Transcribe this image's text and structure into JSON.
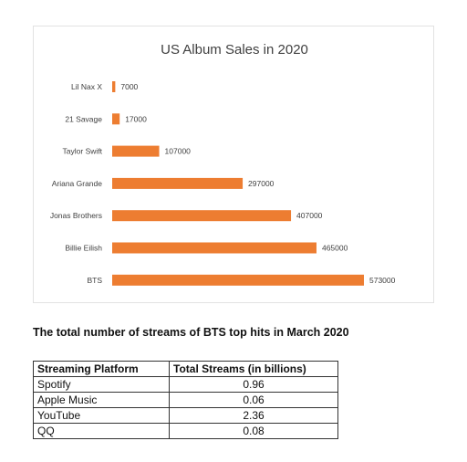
{
  "chart_data": {
    "type": "bar",
    "orientation": "horizontal",
    "title": "US Album Sales in 2020",
    "categories": [
      "Lil Nax X",
      "21 Savage",
      "Taylor Swift",
      "Ariana Grande",
      "Jonas Brothers",
      "Billie Eilish",
      "BTS"
    ],
    "values": [
      7000,
      17000,
      107000,
      297000,
      407000,
      465000,
      573000
    ],
    "value_labels": [
      "7000",
      "17000",
      "107000",
      "297000",
      "407000",
      "465000",
      "573000"
    ],
    "xlim": [
      0,
      573000
    ],
    "bar_color": "#ED7D31",
    "grid": false,
    "legend": "none"
  },
  "table": {
    "heading": "The total number of streams of BTS top hits in March 2020",
    "columns": [
      "Streaming Platform",
      "Total Streams (in billions)"
    ],
    "rows": [
      [
        "Spotify",
        "0.96"
      ],
      [
        "Apple Music",
        "0.06"
      ],
      [
        "YouTube",
        "2.36"
      ],
      [
        "QQ",
        "0.08"
      ]
    ]
  }
}
